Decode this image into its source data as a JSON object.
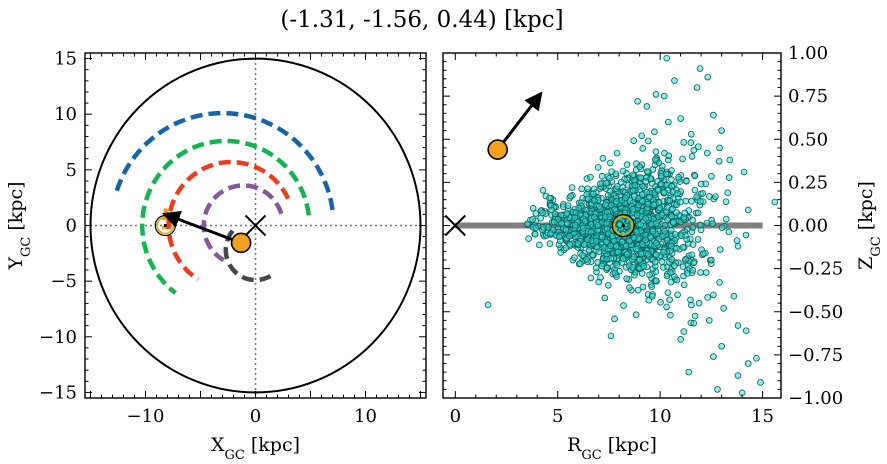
{
  "figure": {
    "title": "(-1.31, -1.56, 0.44) [kpc]"
  },
  "chart_data": [
    {
      "type": "line",
      "panel": "left",
      "xlabel": "X<sub>GC</sub> [kpc]",
      "ylabel": "Y<sub>GC</sub> [kpc]",
      "xlabel_parts": {
        "main": "X",
        "sub": "GC",
        "unit": " [kpc]"
      },
      "ylabel_parts": {
        "main": "Y",
        "sub": "GC",
        "unit": " [kpc]"
      },
      "xlim": [
        -15.5,
        15.5
      ],
      "ylim": [
        -15.5,
        15.5
      ],
      "xticks": [
        -10,
        0,
        10
      ],
      "yticks": [
        -15,
        -10,
        -5,
        0,
        5,
        10,
        15
      ],
      "xtick_labels": [
        "−10",
        "0",
        "10"
      ],
      "ytick_labels": [
        "−15",
        "−10",
        "−5",
        "0",
        "5",
        "10",
        "15"
      ],
      "grid": false,
      "boundary_circle": {
        "cx": 0,
        "cy": 0,
        "r": 15
      },
      "crosshair_lines": [
        0,
        0
      ],
      "arms": [
        {
          "color": "#1565a8",
          "r": 10.1,
          "cx": -3,
          "cy": 0,
          "theta_start_deg": 8,
          "theta_end_deg": 163
        },
        {
          "color": "#0fb54f",
          "r": 7.6,
          "cx": -2.7,
          "cy": 0,
          "theta_start_deg": 7,
          "theta_end_deg": 233
        },
        {
          "color": "#ee3b1c",
          "r": 5.7,
          "cx": -2.2,
          "cy": 0,
          "theta_start_deg": 25,
          "theta_end_deg": 238
        },
        {
          "color": "#86589b",
          "r": 3.6,
          "cx": -1.1,
          "cy": 0,
          "theta_start_deg": 17,
          "theta_end_deg": 240
        },
        {
          "color": "#474747",
          "r": 2.7,
          "cx": 0,
          "cy": -2.2,
          "theta_start_deg": 140,
          "theta_end_deg": 300
        },
        {
          "color": "#f6a11b",
          "r": 6.3,
          "cx": -2.0,
          "cy": 0,
          "theta_start_deg": 166,
          "theta_end_deg": 183
        }
      ],
      "galactic_center": {
        "x": 0,
        "y": 0
      },
      "sun": {
        "x": -8.2,
        "y": 0
      },
      "object": {
        "x": -1.31,
        "y": -1.56
      },
      "arrow": {
        "from": [
          -1.31,
          -1.56
        ],
        "to": [
          -8.2,
          1.0
        ]
      }
    },
    {
      "type": "scatter",
      "panel": "right",
      "xlabel_parts": {
        "main": "R",
        "sub": "GC",
        "unit": " [kpc]"
      },
      "ylabel_parts": {
        "main": "Z",
        "sub": "GC",
        "unit": " [kpc]"
      },
      "xlim": [
        -0.6,
        15.9
      ],
      "ylim": [
        -1.0,
        1.0
      ],
      "xticks": [
        0,
        5,
        10,
        15
      ],
      "yticks": [
        -1.0,
        -0.75,
        -0.5,
        -0.25,
        0.0,
        0.25,
        0.5,
        0.75,
        1.0
      ],
      "xtick_labels": [
        "0",
        "5",
        "10",
        "15"
      ],
      "ytick_labels": [
        "−1.00",
        "−0.75",
        "−0.50",
        "−0.25",
        "0.00",
        "0.25",
        "0.50",
        "0.75",
        "1.00"
      ],
      "grid": false,
      "disk_line": {
        "x": [
          0,
          15
        ],
        "z": 0,
        "color": "#808080"
      },
      "galactic_center": {
        "x": 0,
        "z": 0
      },
      "sun": {
        "x": 8.2,
        "z": 0
      },
      "object": {
        "x": 2.07,
        "z": 0.44
      },
      "arrow": {
        "from": [
          2.07,
          0.44
        ],
        "to": [
          4.15,
          0.76
        ]
      },
      "points_color": "#30e3d9",
      "points_edge": "#0a5a57",
      "sample_points": [
        [
          10.32,
          0.97
        ],
        [
          11.95,
          0.91
        ],
        [
          12.32,
          0.86
        ],
        [
          10.7,
          0.84
        ],
        [
          11.8,
          0.8
        ],
        [
          9.8,
          0.76
        ],
        [
          10.2,
          0.75
        ],
        [
          8.9,
          0.72
        ],
        [
          9.35,
          0.69
        ],
        [
          12.6,
          0.64
        ],
        [
          11.0,
          0.62
        ],
        [
          10.4,
          0.6
        ],
        [
          13.0,
          0.55
        ],
        [
          9.1,
          0.52
        ],
        [
          11.5,
          0.48
        ],
        [
          12.9,
          0.45
        ],
        [
          12.3,
          0.42
        ],
        [
          7.9,
          0.42
        ],
        [
          13.4,
          0.38
        ],
        [
          9.0,
          0.34
        ],
        [
          14.1,
          0.31
        ],
        [
          10.9,
          0.28
        ],
        [
          6.6,
          0.28
        ],
        [
          12.0,
          0.24
        ],
        [
          5.7,
          0.22
        ],
        [
          13.3,
          0.19
        ],
        [
          4.6,
          0.16
        ],
        [
          8.3,
          0.16
        ],
        [
          3.8,
          0.1
        ],
        [
          14.3,
          0.09
        ],
        [
          4.3,
          -0.01
        ],
        [
          3.9,
          -0.05
        ],
        [
          13.8,
          -0.12
        ],
        [
          5.4,
          -0.13
        ],
        [
          12.5,
          -0.2
        ],
        [
          6.1,
          -0.22
        ],
        [
          11.6,
          -0.26
        ],
        [
          9.8,
          -0.32
        ],
        [
          12.9,
          -0.33
        ],
        [
          8.5,
          -0.36
        ],
        [
          13.6,
          -0.41
        ],
        [
          7.3,
          -0.42
        ],
        [
          11.9,
          -0.45
        ],
        [
          13.1,
          -0.48
        ],
        [
          1.6,
          -0.46
        ],
        [
          10.5,
          -0.52
        ],
        [
          12.4,
          -0.55
        ],
        [
          13.8,
          -0.58
        ],
        [
          14.2,
          -0.61
        ],
        [
          7.6,
          -0.64
        ],
        [
          11.0,
          -0.66
        ],
        [
          13.0,
          -0.7
        ],
        [
          12.6,
          -0.76
        ],
        [
          14.7,
          -0.77
        ],
        [
          14.3,
          -0.8
        ],
        [
          11.4,
          -0.85
        ],
        [
          13.8,
          -0.87
        ],
        [
          14.9,
          -0.91
        ],
        [
          12.8,
          -0.95
        ],
        [
          14.0,
          -0.97
        ]
      ]
    }
  ]
}
